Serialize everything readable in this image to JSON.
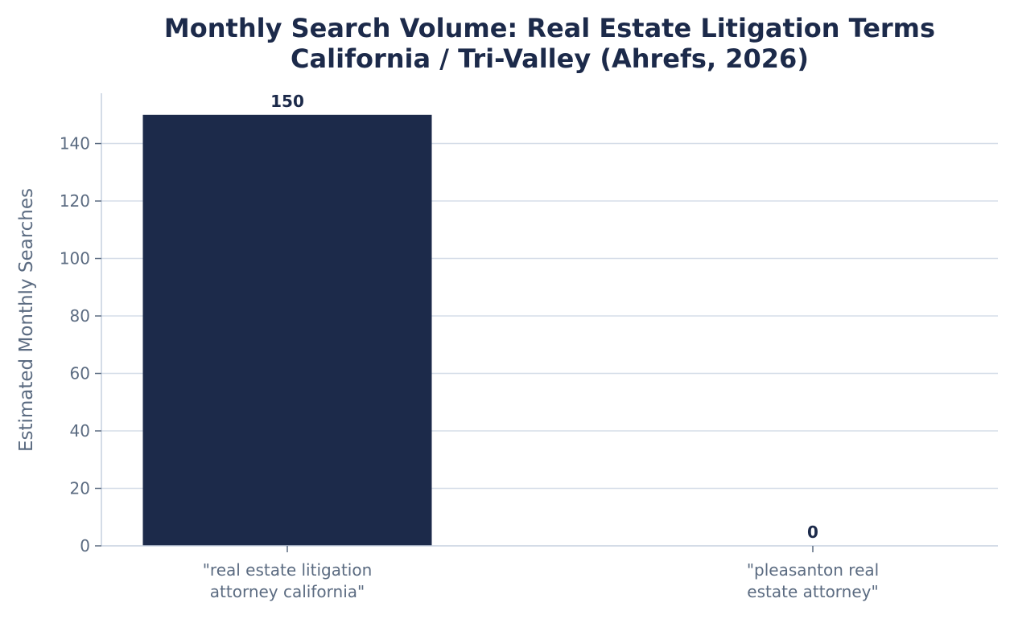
{
  "chart_data": {
    "type": "bar",
    "title_lines": [
      "Monthly Search Volume: Real Estate Litigation Terms",
      "California / Tri-Valley (Ahrefs, 2026)"
    ],
    "ylabel": "Estimated Monthly Searches",
    "xlabel": "",
    "categories": [
      [
        "\"real estate litigation",
        "attorney california\""
      ],
      [
        "\"pleasanton real",
        "estate attorney\""
      ]
    ],
    "values": [
      150,
      0
    ],
    "value_labels": [
      "150",
      "0"
    ],
    "ylim": [
      0,
      157.5
    ],
    "yticks": [
      0,
      20,
      40,
      60,
      80,
      100,
      120,
      140
    ],
    "grid": "horizontal",
    "legend": "none",
    "colors": {
      "bar": "#1c2a4a",
      "grid": "#d5dde8",
      "axis": "#c5d0df",
      "tick_text": "#5b6b81",
      "title": "#1c2a4a",
      "value_label": "#1c2a4a"
    }
  }
}
